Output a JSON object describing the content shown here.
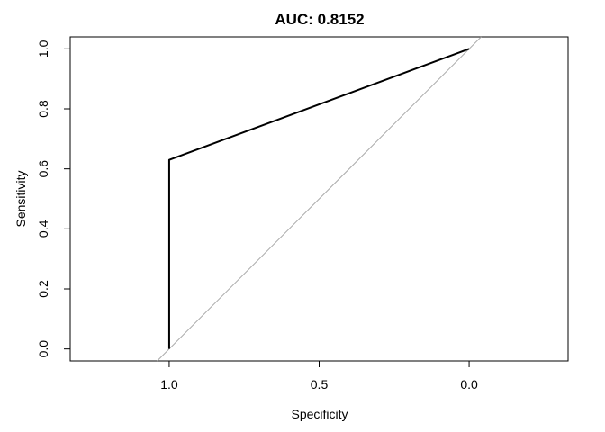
{
  "chart_data": {
    "type": "line",
    "title": "AUC: 0.8152",
    "xlabel": "Specificity",
    "ylabel": "Sensitivity",
    "x_reversed": true,
    "xlim": [
      1.33,
      -0.33
    ],
    "ylim": [
      -0.04,
      1.04
    ],
    "xticks": [
      1.0,
      0.5,
      0.0
    ],
    "xtick_labels": [
      "1.0",
      "0.5",
      "0.0"
    ],
    "yticks": [
      0.0,
      0.2,
      0.4,
      0.6,
      0.8,
      1.0
    ],
    "ytick_labels": [
      "0.0",
      "0.2",
      "0.4",
      "0.6",
      "0.8",
      "1.0"
    ],
    "grid": false,
    "series": [
      {
        "x": [
          1.0,
          1.0,
          0.0
        ],
        "y": [
          0.0,
          0.63,
          1.0
        ],
        "color": "#000000"
      }
    ],
    "reference_line": {
      "description": "diagonal",
      "points": [
        [
          1.0,
          0.0
        ],
        [
          0.0,
          1.0
        ]
      ],
      "color": "#aaaaaa"
    }
  }
}
